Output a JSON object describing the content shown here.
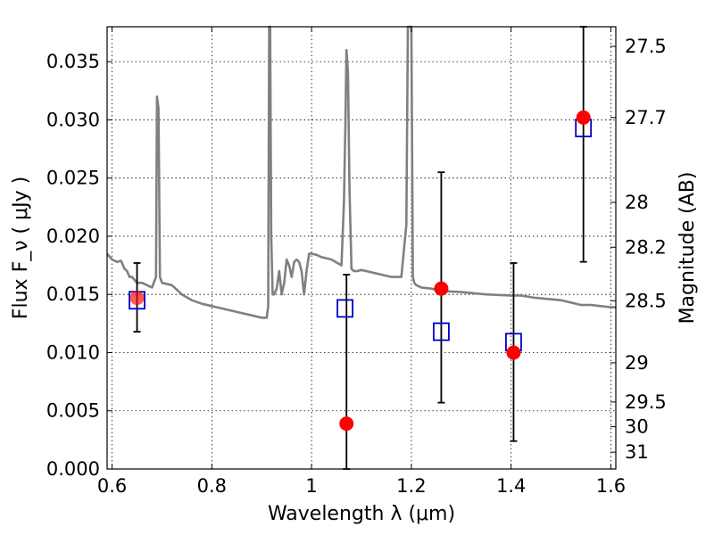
{
  "chart_data": {
    "type": "scatter",
    "xlabel": "Wavelength  λ (μm)",
    "ylabel": "Flux  F_ν  ( μJy )",
    "y2label": "Magnitude (AB)",
    "xlim": [
      0.59,
      1.61
    ],
    "ylim": [
      0.0,
      0.038
    ],
    "grid": true,
    "x_ticks": [
      {
        "value": 0.6,
        "label": "0.6"
      },
      {
        "value": 0.8,
        "label": "0.8"
      },
      {
        "value": 1.0,
        "label": "1"
      },
      {
        "value": 1.2,
        "label": "1.2"
      },
      {
        "value": 1.4,
        "label": "1.4"
      },
      {
        "value": 1.6,
        "label": "1.6"
      }
    ],
    "y_ticks": [
      {
        "value": 0.0,
        "label": "0.000"
      },
      {
        "value": 0.005,
        "label": "0.005"
      },
      {
        "value": 0.01,
        "label": "0.010"
      },
      {
        "value": 0.015,
        "label": "0.015"
      },
      {
        "value": 0.02,
        "label": "0.020"
      },
      {
        "value": 0.025,
        "label": "0.025"
      },
      {
        "value": 0.03,
        "label": "0.030"
      },
      {
        "value": 0.035,
        "label": "0.035"
      }
    ],
    "y2_ticks": [
      {
        "value": 27.5,
        "label": "27.5"
      },
      {
        "value": 27.7,
        "label": "27.7"
      },
      {
        "value": 28,
        "label": "28"
      },
      {
        "value": 28.2,
        "label": "28.2"
      },
      {
        "value": 28.5,
        "label": "28.5"
      },
      {
        "value": 29,
        "label": "29"
      },
      {
        "value": 29.5,
        "label": "29.5"
      },
      {
        "value": 30,
        "label": "30"
      },
      {
        "value": 31,
        "label": "31"
      }
    ],
    "colors": {
      "model_spectrum": "#808080",
      "observed_points": "#ff0000",
      "model_photometry": "#0000cc",
      "error_bars": "#000000"
    },
    "series": [
      {
        "type": "line",
        "x": [
          0.59,
          0.6,
          0.61,
          0.618,
          0.625,
          0.63,
          0.635,
          0.64,
          0.65,
          0.66,
          0.67,
          0.68,
          0.688,
          0.69,
          0.693,
          0.696,
          0.7,
          0.72,
          0.74,
          0.76,
          0.78,
          0.8,
          0.82,
          0.84,
          0.86,
          0.88,
          0.9,
          0.91,
          0.913,
          0.915,
          0.917,
          0.919,
          0.922,
          0.925,
          0.93,
          0.935,
          0.94,
          0.945,
          0.95,
          0.955,
          0.96,
          0.965,
          0.97,
          0.975,
          0.98,
          0.985,
          0.99,
          0.995,
          1.0,
          1.01,
          1.02,
          1.04,
          1.06,
          1.065,
          1.068,
          1.07,
          1.073,
          1.076,
          1.08,
          1.085,
          1.09,
          1.1,
          1.12,
          1.14,
          1.16,
          1.18,
          1.19,
          1.193,
          1.196,
          1.2,
          1.203,
          1.206,
          1.21,
          1.22,
          1.24,
          1.26,
          1.3,
          1.35,
          1.4,
          1.42,
          1.45,
          1.5,
          1.52,
          1.54,
          1.56,
          1.58,
          1.6,
          1.61
        ],
        "y": [
          0.0185,
          0.018,
          0.0178,
          0.0179,
          0.0172,
          0.017,
          0.0165,
          0.0165,
          0.016,
          0.016,
          0.0158,
          0.0156,
          0.0165,
          0.032,
          0.031,
          0.0165,
          0.016,
          0.0158,
          0.015,
          0.0145,
          0.0142,
          0.014,
          0.0138,
          0.0136,
          0.0134,
          0.0132,
          0.013,
          0.013,
          0.014,
          0.038,
          0.038,
          0.02,
          0.015,
          0.015,
          0.0155,
          0.017,
          0.015,
          0.016,
          0.018,
          0.0175,
          0.0165,
          0.0178,
          0.018,
          0.0178,
          0.017,
          0.015,
          0.017,
          0.0185,
          0.0185,
          0.0184,
          0.0182,
          0.018,
          0.0175,
          0.023,
          0.03,
          0.036,
          0.034,
          0.024,
          0.0172,
          0.017,
          0.017,
          0.0171,
          0.0169,
          0.0167,
          0.0165,
          0.0165,
          0.021,
          0.038,
          0.038,
          0.038,
          0.0165,
          0.016,
          0.0158,
          0.0156,
          0.0155,
          0.0153,
          0.0152,
          0.015,
          0.0149,
          0.0149,
          0.0147,
          0.0145,
          0.0143,
          0.0141,
          0.0141,
          0.014,
          0.0139,
          0.0139
        ]
      },
      {
        "type": "errorbar",
        "x": [
          0.65,
          1.07,
          1.26,
          1.405,
          1.545
        ],
        "y_low": [
          0.0118,
          0.0,
          0.0057,
          0.0024,
          0.0178
        ],
        "y_high": [
          0.0177,
          0.0167,
          0.0255,
          0.0177,
          0.038
        ]
      },
      {
        "type": "scatter",
        "marker": "square",
        "x": [
          0.65,
          1.067,
          1.26,
          1.405,
          1.545
        ],
        "y": [
          0.0145,
          0.0138,
          0.0118,
          0.0109,
          0.0293
        ]
      },
      {
        "type": "scatter",
        "marker": "circle",
        "x": [
          0.65,
          1.07,
          1.26,
          1.405,
          1.545
        ],
        "y": [
          0.0147,
          0.0039,
          0.0155,
          0.01,
          0.0302
        ]
      }
    ]
  }
}
